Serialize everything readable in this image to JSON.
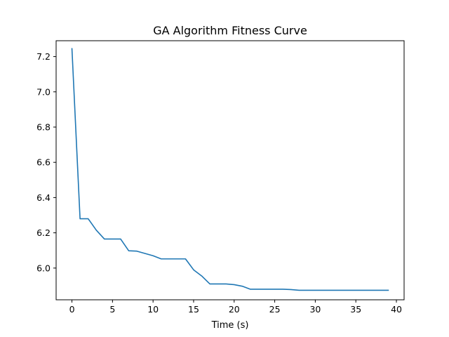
{
  "chart_data": {
    "type": "line",
    "title": "GA Algorithm Fitness Curve",
    "xlabel": "Time (s)",
    "ylabel": "",
    "xlim": [
      -1.95,
      40.95
    ],
    "ylim": [
      5.82,
      7.29
    ],
    "x_ticks": [
      0,
      5,
      10,
      15,
      20,
      25,
      30,
      35,
      40
    ],
    "y_ticks": [
      6.0,
      6.2,
      6.4,
      6.6,
      6.8,
      7.0,
      7.2
    ],
    "x_tick_labels": [
      "0",
      "5",
      "10",
      "15",
      "20",
      "25",
      "30",
      "35",
      "40"
    ],
    "y_tick_labels": [
      "6.0",
      "6.2",
      "6.4",
      "6.6",
      "6.8",
      "7.0",
      "7.2"
    ],
    "grid": false,
    "series": [
      {
        "color": "#1f77b4",
        "x": [
          0,
          1,
          2,
          3,
          4,
          5,
          6,
          7,
          8,
          9,
          10,
          11,
          12,
          13,
          14,
          15,
          16,
          17,
          18,
          19,
          20,
          21,
          22,
          23,
          24,
          25,
          26,
          27,
          28,
          29,
          30,
          31,
          32,
          33,
          34,
          35,
          36,
          37,
          38,
          39
        ],
        "y": [
          7.245,
          6.28,
          6.28,
          6.215,
          6.165,
          6.165,
          6.165,
          6.098,
          6.096,
          6.083,
          6.07,
          6.052,
          6.052,
          6.052,
          6.052,
          5.99,
          5.955,
          5.91,
          5.91,
          5.91,
          5.906,
          5.897,
          5.88,
          5.88,
          5.88,
          5.88,
          5.88,
          5.878,
          5.874,
          5.874,
          5.874,
          5.874,
          5.874,
          5.874,
          5.874,
          5.874,
          5.874,
          5.874,
          5.874,
          5.874
        ]
      }
    ]
  }
}
